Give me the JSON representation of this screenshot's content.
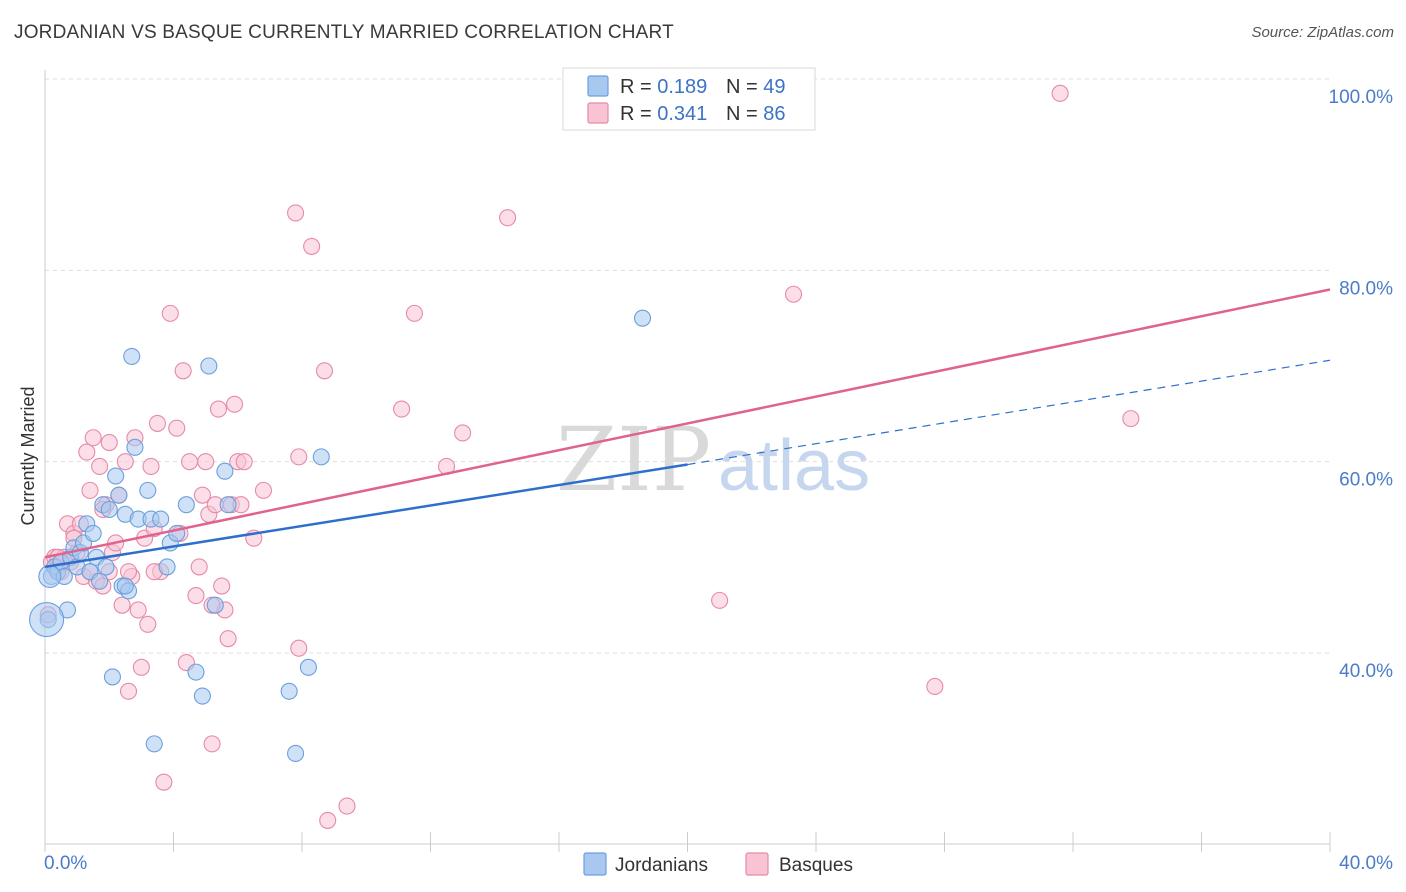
{
  "header": {
    "title": "JORDANIAN VS BASQUE CURRENTLY MARRIED CORRELATION CHART",
    "source": "Source: ZipAtlas.com"
  },
  "watermark": {
    "zip": "ZIP",
    "atlas": "atlas"
  },
  "legend": {
    "rows": [
      {
        "r_label": "R = ",
        "r_value": "0.189",
        "n_label": "N = ",
        "n_value": "49"
      },
      {
        "r_label": "R = ",
        "r_value": "0.341",
        "n_label": "N = ",
        "n_value": "86"
      }
    ]
  },
  "colors": {
    "jordanians_fill": "#a8c8f0",
    "jordanians_stroke": "#6c9fdc",
    "jordanians_line": "#2f6fcc",
    "basques_fill": "#f8c3d3",
    "basques_stroke": "#e68aa8",
    "basques_line": "#e0628e",
    "value_text": "#3b73c8",
    "grid": "#dddddd"
  },
  "chart_data": {
    "type": "scatter",
    "title": "JORDANIAN VS BASQUE CURRENTLY MARRIED CORRELATION CHART",
    "ylabel": "Currently Married",
    "xlabel": "",
    "xlim": [
      0,
      40
    ],
    "ylim": [
      20,
      102
    ],
    "x_tick_labels": [
      "0.0%",
      "40.0%"
    ],
    "y_ticks": [
      {
        "value": 40,
        "label": "40.0%"
      },
      {
        "value": 60,
        "label": "60.0%"
      },
      {
        "value": 80,
        "label": "80.0%"
      },
      {
        "value": 100,
        "label": "100.0%"
      }
    ],
    "x_minor_ticks": [
      0,
      4,
      8,
      12,
      16,
      20,
      24,
      28,
      32,
      36,
      40
    ],
    "grid": true,
    "legend_position": "top-center",
    "series": [
      {
        "name": "Jordanians",
        "r": 0.189,
        "n": 49,
        "trend": {
          "x0": 0,
          "y0": 49.0,
          "x1": 20,
          "y1": 59.7,
          "dash_to_x": 40,
          "dash_to_y": 70.6
        },
        "points": [
          [
            0.2,
            48.0
          ],
          [
            0.3,
            49.0
          ],
          [
            0.4,
            48.5
          ],
          [
            0.5,
            49.5
          ],
          [
            0.6,
            48.0
          ],
          [
            0.7,
            44.5
          ],
          [
            0.8,
            50.0
          ],
          [
            0.9,
            51.0
          ],
          [
            1.0,
            49.0
          ],
          [
            1.1,
            50.5
          ],
          [
            1.2,
            51.5
          ],
          [
            1.3,
            53.5
          ],
          [
            1.4,
            48.5
          ],
          [
            1.5,
            52.5
          ],
          [
            1.6,
            50.0
          ],
          [
            1.7,
            47.5
          ],
          [
            1.8,
            55.5
          ],
          [
            1.9,
            49.0
          ],
          [
            2.0,
            55.0
          ],
          [
            2.1,
            37.5
          ],
          [
            2.2,
            58.5
          ],
          [
            2.3,
            56.5
          ],
          [
            2.4,
            47.0
          ],
          [
            2.5,
            54.5
          ],
          [
            2.6,
            46.5
          ],
          [
            2.7,
            71.0
          ],
          [
            2.8,
            61.5
          ],
          [
            2.9,
            54.0
          ],
          [
            3.2,
            57.0
          ],
          [
            3.3,
            54.0
          ],
          [
            3.4,
            30.5
          ],
          [
            3.6,
            54.0
          ],
          [
            3.8,
            49.0
          ],
          [
            3.9,
            51.5
          ],
          [
            4.1,
            52.5
          ],
          [
            4.4,
            55.5
          ],
          [
            4.7,
            38.0
          ],
          [
            4.9,
            35.5
          ],
          [
            5.1,
            70.0
          ],
          [
            5.3,
            45.0
          ],
          [
            5.6,
            59.0
          ],
          [
            5.7,
            55.5
          ],
          [
            7.6,
            36.0
          ],
          [
            7.8,
            29.5
          ],
          [
            8.2,
            38.5
          ],
          [
            8.6,
            60.5
          ],
          [
            18.6,
            75.0
          ],
          [
            0.1,
            43.5
          ],
          [
            2.5,
            47.0
          ]
        ]
      },
      {
        "name": "Basques",
        "r": 0.341,
        "n": 86,
        "trend": {
          "x0": 0,
          "y0": 50.0,
          "x1": 40,
          "y1": 78.0
        },
        "points": [
          [
            0.2,
            49.5
          ],
          [
            0.3,
            50.0
          ],
          [
            0.4,
            49.0
          ],
          [
            0.5,
            48.5
          ],
          [
            0.6,
            50.0
          ],
          [
            0.7,
            53.5
          ],
          [
            0.8,
            49.5
          ],
          [
            0.9,
            52.5
          ],
          [
            1.0,
            50.5
          ],
          [
            1.1,
            53.5
          ],
          [
            1.2,
            48.0
          ],
          [
            1.3,
            61.0
          ],
          [
            1.4,
            57.0
          ],
          [
            1.5,
            62.5
          ],
          [
            1.6,
            47.5
          ],
          [
            1.7,
            59.5
          ],
          [
            1.8,
            47.0
          ],
          [
            1.9,
            55.5
          ],
          [
            2.0,
            62.0
          ],
          [
            2.1,
            50.5
          ],
          [
            2.2,
            51.5
          ],
          [
            2.3,
            56.5
          ],
          [
            2.4,
            45.0
          ],
          [
            2.5,
            60.0
          ],
          [
            2.6,
            36.0
          ],
          [
            2.7,
            48.0
          ],
          [
            2.8,
            62.5
          ],
          [
            2.9,
            44.5
          ],
          [
            3.0,
            38.5
          ],
          [
            3.1,
            52.0
          ],
          [
            3.2,
            43.0
          ],
          [
            3.3,
            59.5
          ],
          [
            3.4,
            53.0
          ],
          [
            3.5,
            64.0
          ],
          [
            3.6,
            48.5
          ],
          [
            3.7,
            26.5
          ],
          [
            3.9,
            75.5
          ],
          [
            4.1,
            63.5
          ],
          [
            4.2,
            52.5
          ],
          [
            4.3,
            69.5
          ],
          [
            4.4,
            39.0
          ],
          [
            4.5,
            60.0
          ],
          [
            4.7,
            46.0
          ],
          [
            4.8,
            49.0
          ],
          [
            4.9,
            56.5
          ],
          [
            5.0,
            60.0
          ],
          [
            5.1,
            54.5
          ],
          [
            5.2,
            30.5
          ],
          [
            5.3,
            55.5
          ],
          [
            5.4,
            65.5
          ],
          [
            5.5,
            47.0
          ],
          [
            5.6,
            44.5
          ],
          [
            5.7,
            41.5
          ],
          [
            5.8,
            55.5
          ],
          [
            5.9,
            66.0
          ],
          [
            6.0,
            60.0
          ],
          [
            6.1,
            55.5
          ],
          [
            6.2,
            60.0
          ],
          [
            6.5,
            52.0
          ],
          [
            6.8,
            57.0
          ],
          [
            7.8,
            86.0
          ],
          [
            7.9,
            60.5
          ],
          [
            7.9,
            40.5
          ],
          [
            8.3,
            82.5
          ],
          [
            8.8,
            22.5
          ],
          [
            8.7,
            69.5
          ],
          [
            9.4,
            24.0
          ],
          [
            11.1,
            65.5
          ],
          [
            11.5,
            75.5
          ],
          [
            12.5,
            59.5
          ],
          [
            13.0,
            63.0
          ],
          [
            14.4,
            85.5
          ],
          [
            21.0,
            45.5
          ],
          [
            23.3,
            77.5
          ],
          [
            27.7,
            36.5
          ],
          [
            31.6,
            98.5
          ],
          [
            33.8,
            64.5
          ],
          [
            0.1,
            44.0
          ],
          [
            0.9,
            52.0
          ],
          [
            1.4,
            48.5
          ],
          [
            2.0,
            48.5
          ],
          [
            2.6,
            48.5
          ],
          [
            3.4,
            48.5
          ],
          [
            5.2,
            45.0
          ],
          [
            1.8,
            55.0
          ],
          [
            0.4,
            50.0
          ]
        ]
      }
    ]
  },
  "bottom_legend": [
    {
      "label": "Jordanians"
    },
    {
      "label": "Basques"
    }
  ]
}
